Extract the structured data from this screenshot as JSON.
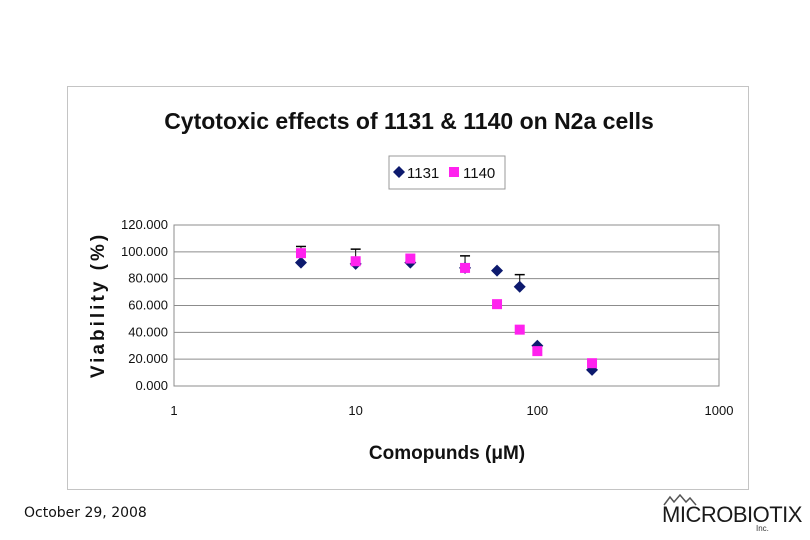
{
  "chart_data": {
    "type": "scatter",
    "title": "Cytotoxic effects of 1131 & 1140 on N2a cells",
    "xlabel": "Comopunds (μM)",
    "ylabel": "Viability (%)",
    "x_scale": "log",
    "xlim": [
      1,
      1000
    ],
    "ylim": [
      0,
      120
    ],
    "x_ticks": [
      1,
      10,
      100,
      1000
    ],
    "x_tick_labels": [
      "1",
      "10",
      "100",
      "1000"
    ],
    "y_ticks": [
      0,
      20,
      40,
      60,
      80,
      100,
      120
    ],
    "y_tick_labels": [
      "0.000",
      "20.000",
      "40.000",
      "60.000",
      "80.000",
      "100.000",
      "120.000"
    ],
    "grid": "horizontal",
    "legend_position": "top-center",
    "series": [
      {
        "name": "1131",
        "marker": "diamond",
        "color": "#0d1a6e",
        "points": [
          {
            "x": 5,
            "y": 92
          },
          {
            "x": 10,
            "y": 91
          },
          {
            "x": 20,
            "y": 92
          },
          {
            "x": 40,
            "y": 88
          },
          {
            "x": 60,
            "y": 86
          },
          {
            "x": 80,
            "y": 74
          },
          {
            "x": 100,
            "y": 30
          },
          {
            "x": 200,
            "y": 12
          }
        ]
      },
      {
        "name": "1140",
        "marker": "square",
        "color": "#ff22ee",
        "points": [
          {
            "x": 5,
            "y": 99
          },
          {
            "x": 10,
            "y": 93
          },
          {
            "x": 20,
            "y": 95
          },
          {
            "x": 40,
            "y": 88
          },
          {
            "x": 60,
            "y": 61
          },
          {
            "x": 80,
            "y": 42
          },
          {
            "x": 100,
            "y": 26
          },
          {
            "x": 200,
            "y": 17
          }
        ]
      }
    ],
    "error_bars": [
      {
        "x": 5,
        "y": 99,
        "upper": 104
      },
      {
        "x": 10,
        "y": 93,
        "upper": 102
      },
      {
        "x": 40,
        "y": 88,
        "upper": 97
      },
      {
        "x": 80,
        "y": 74,
        "upper": 83
      }
    ]
  },
  "footer": {
    "date": "October 29, 2008",
    "logo_text": "MICROBIOTIX",
    "logo_suffix": "Inc."
  }
}
